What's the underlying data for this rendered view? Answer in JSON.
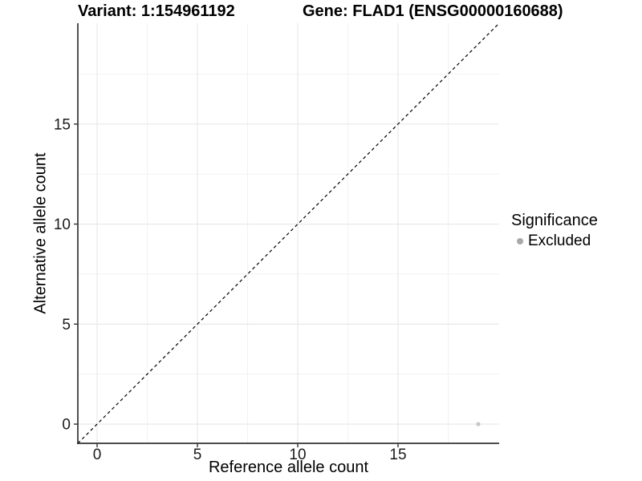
{
  "titles": {
    "variant": "Variant: 1:154961192",
    "gene": "Gene: FLAD1 (ENSG00000160688)"
  },
  "legend": {
    "title": "Significance",
    "items": [
      {
        "label": "Excluded",
        "color": "#a8a8a8"
      }
    ]
  },
  "chart_data": {
    "type": "scatter",
    "title_left": "Variant: 1:154961192",
    "title_right": "Gene: FLAD1 (ENSG00000160688)",
    "xlabel": "Reference allele count",
    "ylabel": "Alternative allele count",
    "xlim": [
      -0.96,
      20.04
    ],
    "ylim": [
      -0.96,
      20.04
    ],
    "x_ticks": [
      0,
      5,
      10,
      15
    ],
    "y_ticks": [
      0,
      5,
      10,
      15
    ],
    "x_minor": [
      2.5,
      7.5,
      12.5,
      17.5
    ],
    "y_minor": [
      2.5,
      7.5,
      12.5,
      17.5
    ],
    "grid": true,
    "legend_position": "right",
    "identity_line": {
      "style": "dashed",
      "from": -0.96,
      "to": 20.04,
      "color": "#000000"
    },
    "series": [
      {
        "name": "Excluded",
        "color": "#c6c6c6",
        "points": [
          {
            "x": 19,
            "y": 0
          }
        ]
      }
    ],
    "colors": {
      "grid_major": "#e6e6e6",
      "grid_minor": "#f2f2f2",
      "axis": "#333333",
      "tick_label": "#1a1a1a",
      "title": "#000000"
    }
  }
}
